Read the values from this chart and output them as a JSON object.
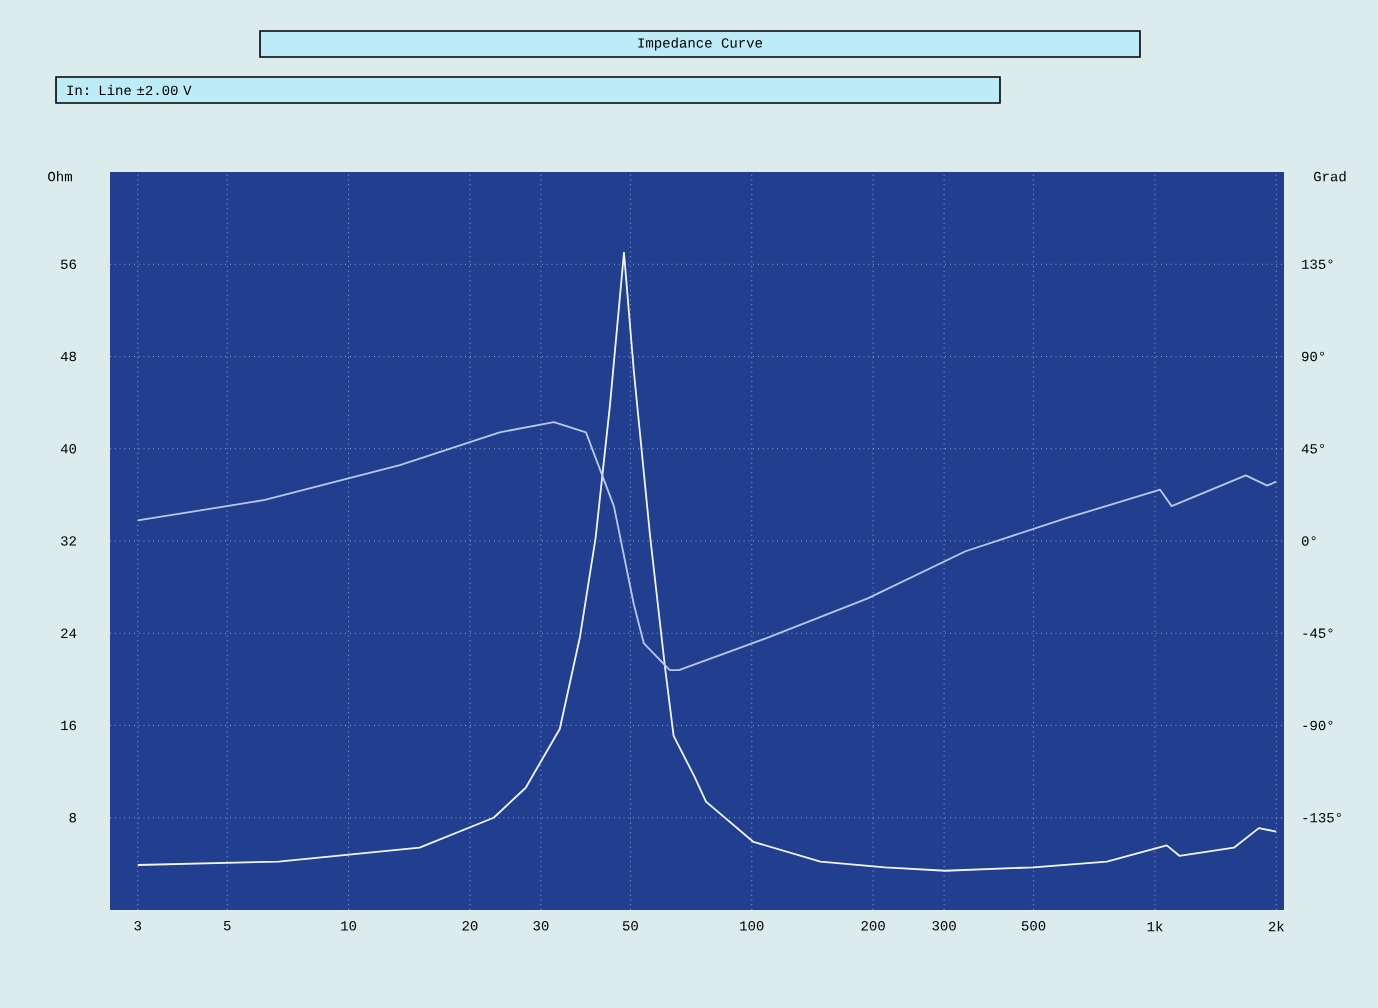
{
  "chart_data": {
    "type": "line",
    "title": "Impedance Curve",
    "subtitle": "In: Line ±2.00 V",
    "ylabel": "Ohm",
    "y2label": "Grad",
    "log": "x",
    "grid": true,
    "xlim": [
      2.56,
      2090
    ],
    "xticks": [
      3,
      5,
      10,
      20,
      30,
      50,
      100,
      200,
      300,
      500,
      {
        "value": 1000,
        "label": "1k"
      },
      {
        "value": 2000,
        "label": "2k"
      }
    ],
    "ylim": [
      0,
      64
    ],
    "yticks": [
      8,
      16,
      24,
      32,
      40,
      48,
      56
    ],
    "y2lim": [
      -180,
      180
    ],
    "y2ticks": [
      {
        "value": -135,
        "label": "-135°"
      },
      {
        "value": -90,
        "label": "-90°"
      },
      {
        "value": -45,
        "label": "-45°"
      },
      {
        "value": 0,
        "label": "0°"
      },
      {
        "value": 45,
        "label": "45°"
      },
      {
        "value": 90,
        "label": "90°"
      },
      {
        "value": 135,
        "label": "135°"
      }
    ],
    "series": [
      {
        "color": "#f2f4ff",
        "x": [
          3,
          6.7,
          15,
          22.9,
          27.5,
          33.4,
          37.5,
          41,
          44.5,
          48.2,
          51,
          56,
          61,
          64,
          72,
          77,
          101,
          148,
          214,
          302,
          500,
          760,
          1070,
          1150,
          1570,
          1810,
          2000
        ],
        "values": [
          3.9,
          4.2,
          5.4,
          8.0,
          10.6,
          15.7,
          23.7,
          32.3,
          43.8,
          57,
          46.7,
          32.3,
          20.9,
          15.1,
          11.6,
          9.4,
          5.9,
          4.2,
          3.7,
          3.4,
          3.7,
          4.2,
          5.6,
          4.7,
          5.4,
          7.1,
          6.8
        ]
      },
      {
        "color": "#b8c8ec",
        "axis": "y2",
        "x": [
          3,
          6.2,
          13.4,
          23.7,
          32.3,
          38.8,
          45.5,
          51,
          54,
          62.6,
          66,
          110,
          194,
          339,
          600,
          1030,
          1100,
          1680,
          1900,
          2000
        ],
        "values": [
          10,
          20,
          37,
          53,
          58,
          53,
          17,
          -31,
          -50,
          -63,
          -63,
          -47,
          -28,
          -5,
          11,
          25,
          17,
          32,
          27,
          29
        ]
      }
    ]
  }
}
